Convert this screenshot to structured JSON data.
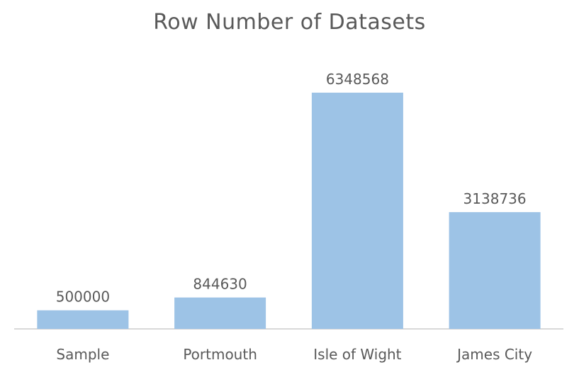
{
  "chart_data": {
    "type": "bar",
    "title": "Row Number of Datasets",
    "xlabel": "",
    "ylabel": "",
    "categories": [
      "Sample",
      "Portmouth",
      "Isle of Wight",
      "James City"
    ],
    "values": [
      500000,
      844630,
      6348568,
      3138736
    ],
    "value_labels": [
      "500000",
      "844630",
      "6348568",
      "3138736"
    ],
    "ylim": [
      0,
      6348568
    ],
    "grid": false,
    "legend": "none",
    "bar_color": "#9DC3E6",
    "axis_color": "#D9D9D9",
    "text_color": "#595959"
  }
}
